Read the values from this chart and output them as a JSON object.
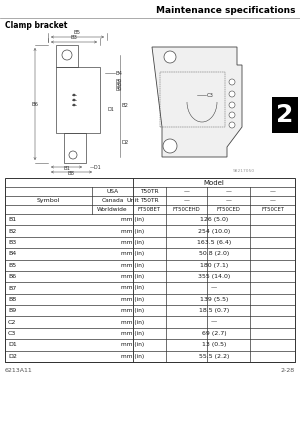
{
  "page_title": "Maintenance specifications",
  "section_title": "Clamp bracket",
  "footer_left": "6213A11",
  "footer_right": "2-28",
  "diagram_ref": "98217050",
  "table_headers": {
    "col2_sub": [
      "USA",
      "Canada",
      "Worldwide"
    ],
    "col4_model": "Model",
    "col4_sub_row1": [
      "T50TR",
      "—",
      "—",
      "—"
    ],
    "col4_sub_row2": [
      "T50TR",
      "—",
      "—",
      "—"
    ],
    "col4_sub_row3": [
      "FT50BET",
      "FT50CEHD",
      "FT50CED",
      "FT50CET"
    ]
  },
  "rows": [
    {
      "symbol": "B1",
      "unit": "mm (in)",
      "value": "126 (5.0)"
    },
    {
      "symbol": "B2",
      "unit": "mm (in)",
      "value": "254 (10.0)"
    },
    {
      "symbol": "B3",
      "unit": "mm (in)",
      "value": "163.5 (6.4)"
    },
    {
      "symbol": "B4",
      "unit": "mm (in)",
      "value": "50.8 (2.0)"
    },
    {
      "symbol": "B5",
      "unit": "mm (in)",
      "value": "180 (7.1)"
    },
    {
      "symbol": "B6",
      "unit": "mm (in)",
      "value": "355 (14.0)"
    },
    {
      "symbol": "B7",
      "unit": "mm (in)",
      "value": "—"
    },
    {
      "symbol": "B8",
      "unit": "mm (in)",
      "value": "139 (5.5)"
    },
    {
      "symbol": "B9",
      "unit": "mm (in)",
      "value": "18.5 (0.7)"
    },
    {
      "symbol": "C2",
      "unit": "mm (in)",
      "value": "—"
    },
    {
      "symbol": "C3",
      "unit": "mm (in)",
      "value": "69 (2.7)"
    },
    {
      "symbol": "D1",
      "unit": "mm (in)",
      "value": "13 (0.5)"
    },
    {
      "symbol": "D2",
      "unit": "mm (in)",
      "value": "55.5 (2.2)"
    }
  ],
  "bg_color": "#ffffff",
  "text_color": "#1a1a1a",
  "line_color": "#444444",
  "title_color": "#000000",
  "number_badge": "2",
  "number_badge_bg": "#000000",
  "number_badge_text": "#ffffff",
  "title_line_color": "#888888"
}
